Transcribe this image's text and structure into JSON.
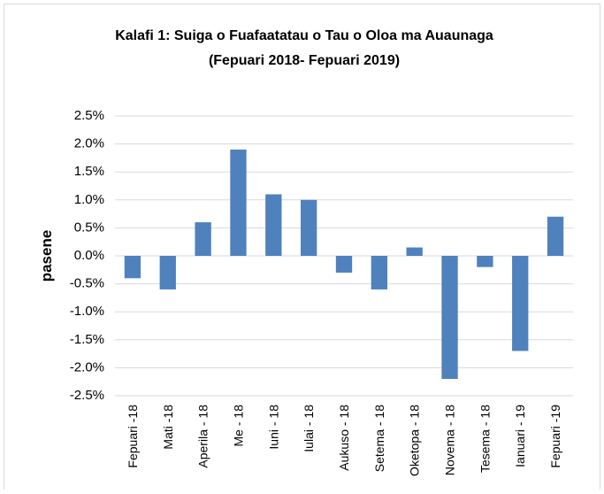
{
  "chart_data": {
    "type": "bar",
    "title": "Kalafi 1: Suiga o Fuafaatatau o Tau o Oloa ma Auaunaga",
    "subtitle": "(Fepuari 2018- Fepuari 2019)",
    "y_label": "pasene",
    "categories": [
      "Fepuari -18",
      "Mati -18",
      "Aperila - 18",
      "Me - 18",
      "Iuni - 18",
      "Iulai - 18",
      "Aukuso - 18",
      "Setema - 18",
      "Oketopa - 18",
      "Novema - 18",
      "Tesema - 18",
      "Ianuari - 19",
      "Fepuari -19"
    ],
    "values": [
      -0.4,
      -0.6,
      0.6,
      1.9,
      1.1,
      1.0,
      -0.3,
      -0.6,
      0.15,
      -2.2,
      -0.2,
      -1.7,
      0.7
    ],
    "color": "#4f81bd",
    "ylim": [
      -2.5,
      2.5
    ],
    "yticks": [
      {
        "value": 2.5,
        "label": "2.5%"
      },
      {
        "value": 2.0,
        "label": "2.0%"
      },
      {
        "value": 1.5,
        "label": "1.5%"
      },
      {
        "value": 1.0,
        "label": "1.0%"
      },
      {
        "value": 0.5,
        "label": "0.5%"
      },
      {
        "value": 0,
        "label": "0.0%"
      },
      {
        "value": -0.5,
        "label": "-0.5%"
      },
      {
        "value": -1.0,
        "label": "-1.0%"
      },
      {
        "value": -1.5,
        "label": "-1.5%"
      },
      {
        "value": -2.0,
        "label": "-2.0%"
      },
      {
        "value": -2.5,
        "label": "-2.5%"
      }
    ],
    "grid": true
  }
}
